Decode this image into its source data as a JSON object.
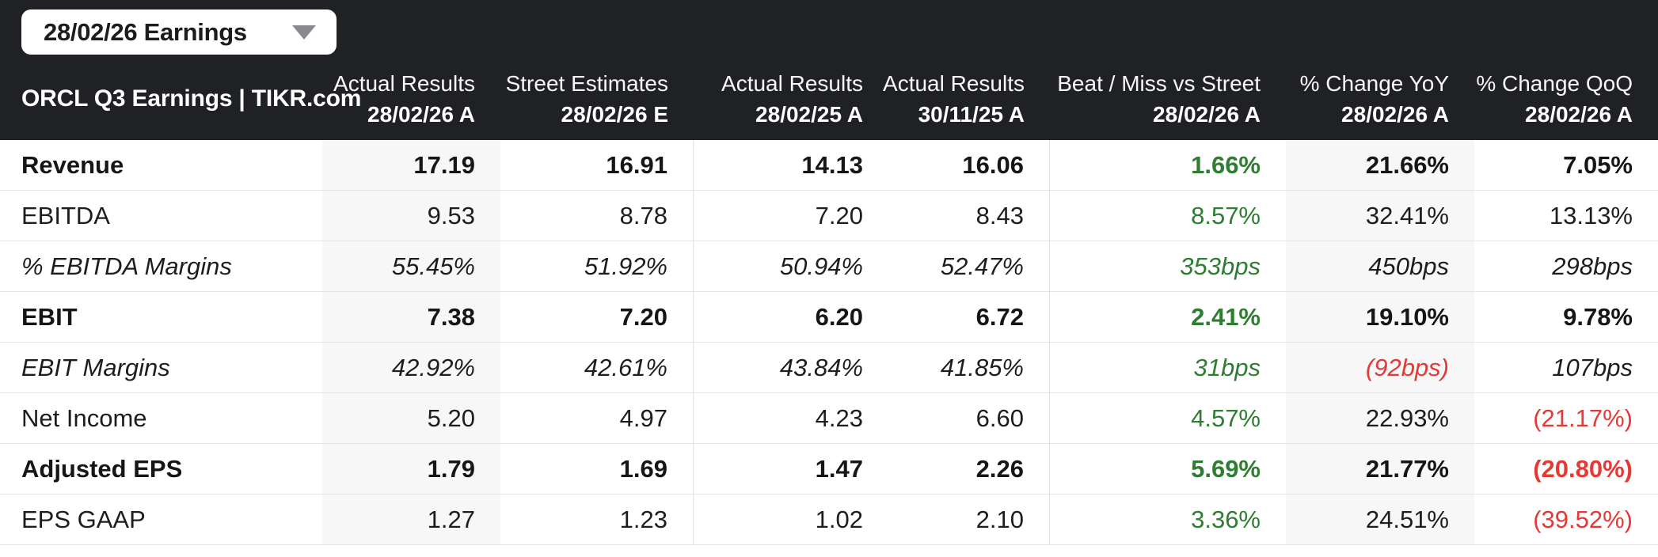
{
  "dropdown": {
    "label": "28/02/26 Earnings"
  },
  "table": {
    "title": "ORCL Q3 Earnings | TIKR.com",
    "columns": [
      {
        "line1": "Actual Results",
        "line2": "28/02/26 A"
      },
      {
        "line1": "Street Estimates",
        "line2": "28/02/26 E"
      },
      {
        "line1": "Actual Results",
        "line2": "28/02/25 A"
      },
      {
        "line1": "Actual Results",
        "line2": "30/11/25 A"
      },
      {
        "line1": "Beat / Miss vs Street",
        "line2": "28/02/26 A"
      },
      {
        "line1": "% Change YoY",
        "line2": "28/02/26 A"
      },
      {
        "line1": "% Change QoQ",
        "line2": "28/02/26 A"
      }
    ],
    "rows": [
      {
        "label": "Revenue",
        "style": "bold",
        "values": [
          "17.19",
          "16.91",
          "14.13",
          "16.06",
          "1.66%",
          "21.66%",
          "7.05%"
        ],
        "colors": [
          "default",
          "default",
          "default",
          "default",
          "green",
          "default",
          "default"
        ]
      },
      {
        "label": "EBITDA",
        "style": "normal",
        "values": [
          "9.53",
          "8.78",
          "7.20",
          "8.43",
          "8.57%",
          "32.41%",
          "13.13%"
        ],
        "colors": [
          "default",
          "default",
          "default",
          "default",
          "green",
          "default",
          "default"
        ]
      },
      {
        "label": "% EBITDA Margins",
        "style": "italic",
        "values": [
          "55.45%",
          "51.92%",
          "50.94%",
          "52.47%",
          "353bps",
          "450bps",
          "298bps"
        ],
        "colors": [
          "default",
          "default",
          "default",
          "default",
          "green",
          "default",
          "default"
        ]
      },
      {
        "label": "EBIT",
        "style": "bold",
        "values": [
          "7.38",
          "7.20",
          "6.20",
          "6.72",
          "2.41%",
          "19.10%",
          "9.78%"
        ],
        "colors": [
          "default",
          "default",
          "default",
          "default",
          "green",
          "default",
          "default"
        ]
      },
      {
        "label": "EBIT Margins",
        "style": "italic",
        "values": [
          "42.92%",
          "42.61%",
          "43.84%",
          "41.85%",
          "31bps",
          "(92bps)",
          "107bps"
        ],
        "colors": [
          "default",
          "default",
          "default",
          "default",
          "green",
          "red",
          "default"
        ]
      },
      {
        "label": "Net Income",
        "style": "normal",
        "values": [
          "5.20",
          "4.97",
          "4.23",
          "6.60",
          "4.57%",
          "22.93%",
          "(21.17%)"
        ],
        "colors": [
          "default",
          "default",
          "default",
          "default",
          "green",
          "default",
          "red"
        ]
      },
      {
        "label": "Adjusted EPS",
        "style": "bold",
        "values": [
          "1.79",
          "1.69",
          "1.47",
          "2.26",
          "5.69%",
          "21.77%",
          "(20.80%)"
        ],
        "colors": [
          "default",
          "default",
          "default",
          "default",
          "green",
          "default",
          "red"
        ]
      },
      {
        "label": "EPS GAAP",
        "style": "normal",
        "values": [
          "1.27",
          "1.23",
          "1.02",
          "2.10",
          "3.36%",
          "24.51%",
          "(39.52%)"
        ],
        "colors": [
          "default",
          "default",
          "default",
          "default",
          "green",
          "default",
          "red"
        ]
      }
    ]
  },
  "colors": {
    "green": "#2e7d32",
    "red": "#e53935",
    "header_bg": "#202124",
    "shaded_col": "#f7f7f7",
    "row_border": "#e4e4e4",
    "text": "#1d1d1f"
  }
}
